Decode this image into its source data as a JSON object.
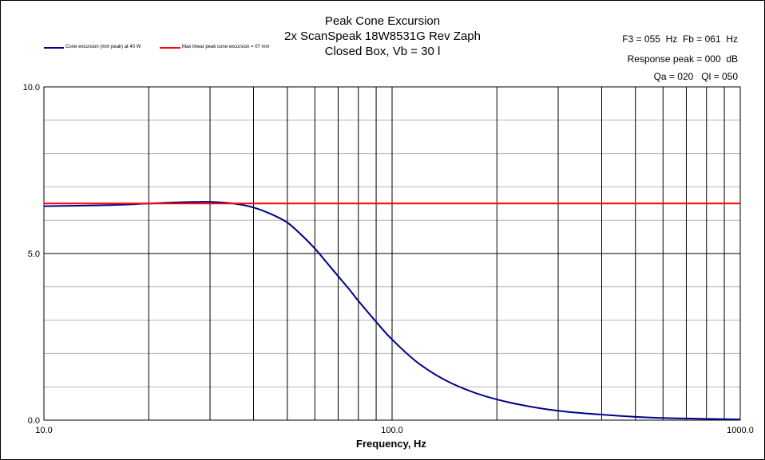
{
  "chart_data": {
    "type": "line",
    "title": [
      "Peak Cone Excursion",
      "2x ScanSpeak 18W8531G Rev Zaph",
      "Closed Box, Vb = 30 l"
    ],
    "params": [
      "F3 = 055  Hz  Fb = 061  Hz",
      "Response peak = 000  dB",
      "Qa = 020   Ql = 050"
    ],
    "xlabel": "Frequency, Hz",
    "ylabel": "",
    "x_scale": "log",
    "xlim": [
      10,
      1000
    ],
    "ylim": [
      0,
      10
    ],
    "x_tick_labels": [
      "10.0",
      "100.0",
      "1000.0"
    ],
    "y_tick_labels": [
      "0.0",
      "5.0",
      "10.0"
    ],
    "y_ticks": [
      0,
      5,
      10
    ],
    "y_minor_step": 1,
    "x_gridlines": [
      10,
      20,
      30,
      40,
      50,
      60,
      70,
      80,
      90,
      100,
      200,
      300,
      400,
      500,
      600,
      700,
      800,
      900,
      1000
    ],
    "grid": true,
    "legend_position": "top-left",
    "series": [
      {
        "name": "Cone excursion (mm peak) at 40 W",
        "color": "#00008B",
        "x": [
          10,
          15,
          20,
          25,
          30,
          35,
          40,
          45,
          50,
          55,
          60,
          65,
          70,
          75,
          80,
          90,
          100,
          120,
          150,
          200,
          300,
          500,
          700,
          1000
        ],
        "y": [
          6.42,
          6.45,
          6.5,
          6.54,
          6.55,
          6.5,
          6.38,
          6.18,
          5.93,
          5.55,
          5.15,
          4.72,
          4.32,
          3.95,
          3.58,
          2.95,
          2.42,
          1.68,
          1.08,
          0.62,
          0.28,
          0.1,
          0.05,
          0.02
        ]
      },
      {
        "name": "Max linear peak cone excursion = 07 mm",
        "color": "#FF0000",
        "x": [
          10,
          1000
        ],
        "y": [
          6.5,
          6.5
        ]
      }
    ]
  }
}
